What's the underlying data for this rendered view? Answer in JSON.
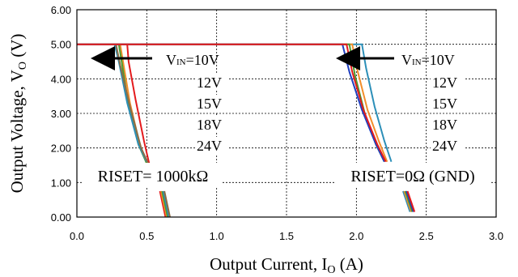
{
  "chart_data": {
    "type": "line",
    "xlabel": "Output Current, I",
    "xlabel_sub": "O",
    "xlabel_unit": " (A)",
    "ylabel": "Output Voltage, V",
    "ylabel_sub": "O",
    "ylabel_unit": " (V)",
    "xlim": [
      0,
      3
    ],
    "ylim": [
      0,
      6
    ],
    "xticks": [
      "0.0",
      "0.5",
      "1.0",
      "1.5",
      "2.0",
      "2.5",
      "3.0"
    ],
    "yticks": [
      "0.00",
      "1.00",
      "2.00",
      "3.00",
      "4.00",
      "5.00",
      "6.00"
    ],
    "grid": true,
    "groups": [
      {
        "label": "RISET= 1000kΩ",
        "vin_prefix": "V",
        "vin_sub": "IN",
        "vin_first": "=10V",
        "vin_values": [
          "12V",
          "15V",
          "18V",
          "24V"
        ],
        "series": [
          {
            "color": "#e41a1c",
            "points": [
              [
                0,
                5.0
              ],
              [
                0.36,
                5.0
              ],
              [
                0.37,
                4.5
              ],
              [
                0.42,
                3.4
              ],
              [
                0.48,
                2.2
              ],
              [
                0.52,
                1.5
              ]
            ]
          },
          {
            "color": "#f28e2b",
            "points": [
              [
                0,
                5.0
              ],
              [
                0.31,
                5.0
              ],
              [
                0.33,
                4.5
              ],
              [
                0.38,
                3.3
              ],
              [
                0.45,
                2.1
              ],
              [
                0.5,
                1.55
              ]
            ]
          },
          {
            "color": "#4e9a2f",
            "points": [
              [
                0,
                5.0
              ],
              [
                0.3,
                5.0
              ],
              [
                0.32,
                4.5
              ],
              [
                0.37,
                3.2
              ],
              [
                0.44,
                2.1
              ],
              [
                0.5,
                1.55
              ]
            ]
          },
          {
            "color": "#2c8fb8",
            "points": [
              [
                0,
                5.0
              ],
              [
                0.27,
                5.0
              ],
              [
                0.3,
                4.5
              ],
              [
                0.36,
                3.3
              ],
              [
                0.44,
                2.1
              ],
              [
                0.5,
                1.6
              ]
            ]
          },
          {
            "color": "#8c6d46",
            "points": [
              [
                0,
                5.0
              ],
              [
                0.28,
                5.0
              ],
              [
                0.31,
                4.4
              ],
              [
                0.38,
                3.2
              ],
              [
                0.46,
                2.0
              ],
              [
                0.51,
                1.55
              ]
            ]
          }
        ],
        "tail": {
          "x": [
            0.61,
            0.65
          ],
          "y": [
            0.0,
            0.75
          ]
        }
      },
      {
        "label": "RISET=0Ω (GND)",
        "vin_prefix": "V",
        "vin_sub": "IN",
        "vin_first": "=10V",
        "vin_values": [
          "12V",
          "15V",
          "18V",
          "24V"
        ],
        "series": [
          {
            "color": "#2c8fb8",
            "points": [
              [
                0,
                5.0
              ],
              [
                2.04,
                5.0
              ],
              [
                2.07,
                4.3
              ],
              [
                2.13,
                3.2
              ],
              [
                2.2,
                2.2
              ],
              [
                2.25,
                1.6
              ]
            ]
          },
          {
            "color": "#f28e2b",
            "points": [
              [
                0,
                5.0
              ],
              [
                1.97,
                5.0
              ],
              [
                2.01,
                4.2
              ],
              [
                2.08,
                3.1
              ],
              [
                2.16,
                2.2
              ],
              [
                2.22,
                1.6
              ]
            ]
          },
          {
            "color": "#4e9a2f",
            "points": [
              [
                0,
                5.0
              ],
              [
                1.95,
                5.0
              ],
              [
                1.99,
                4.1
              ],
              [
                2.06,
                3.0
              ],
              [
                2.14,
                2.1
              ],
              [
                2.2,
                1.6
              ]
            ]
          },
          {
            "color": "#1f3fbf",
            "points": [
              [
                0,
                5.0
              ],
              [
                1.9,
                5.0
              ],
              [
                1.95,
                4.2
              ],
              [
                2.04,
                3.1
              ],
              [
                2.14,
                2.1
              ],
              [
                2.2,
                1.6
              ]
            ]
          },
          {
            "color": "#e41a1c",
            "points": [
              [
                0,
                5.0
              ],
              [
                1.93,
                5.0
              ],
              [
                1.97,
                4.2
              ],
              [
                2.05,
                3.1
              ],
              [
                2.15,
                2.1
              ],
              [
                2.21,
                1.6
              ]
            ]
          }
        ],
        "tail": {
          "x": [
            2.35,
            2.4
          ],
          "y": [
            0.15,
            0.75
          ]
        }
      }
    ]
  }
}
